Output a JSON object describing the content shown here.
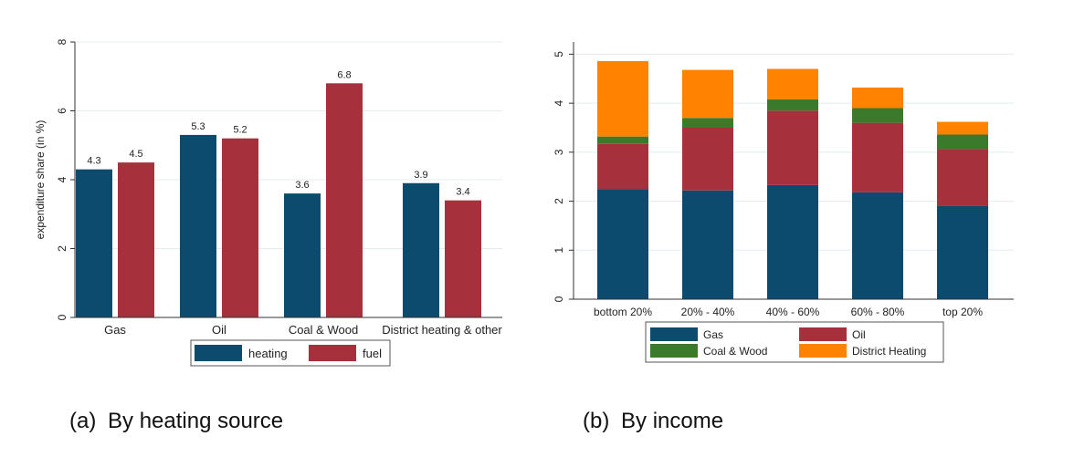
{
  "chart_data": [
    {
      "type": "bar",
      "title": "",
      "ylabel": "expenditure share (in %)",
      "xlabel": "",
      "categories": [
        "Gas",
        "Oil",
        "Coal & Wood",
        "District heating & other"
      ],
      "series": [
        {
          "name": "heating",
          "values": [
            4.3,
            5.3,
            3.6,
            3.9
          ],
          "labels": [
            "4.3",
            "5.3",
            "3.6",
            "3.9"
          ],
          "color": "#0c4a6e"
        },
        {
          "name": "fuel",
          "values": [
            4.5,
            5.2,
            6.8,
            3.4
          ],
          "labels": [
            "4.5",
            "5.2",
            "6.8",
            "3.4"
          ],
          "color": "#a6313d"
        }
      ],
      "yticks": [
        "0",
        "2",
        "4",
        "6",
        "8"
      ],
      "ylim": [
        0,
        8
      ],
      "grid": true,
      "legend_position": "bottom"
    },
    {
      "type": "stacked-bar",
      "title": "",
      "ylabel": "",
      "xlabel": "",
      "categories": [
        "bottom 20%",
        "20% - 40%",
        "40% - 60%",
        "60% - 80%",
        "top 20%"
      ],
      "series": [
        {
          "name": "Gas",
          "values": [
            2.25,
            2.22,
            2.33,
            2.18,
            1.9
          ],
          "color": "#0c4a6e"
        },
        {
          "name": "Oil",
          "values": [
            0.92,
            1.28,
            1.52,
            1.42,
            1.17
          ],
          "color": "#a6313d"
        },
        {
          "name": "Coal & Wood",
          "values": [
            0.15,
            0.2,
            0.23,
            0.3,
            0.29
          ],
          "color": "#3b7a2a"
        },
        {
          "name": "District Heating",
          "values": [
            1.54,
            0.98,
            0.62,
            0.42,
            0.26
          ],
          "color": "#ff8300"
        }
      ],
      "yticks": [
        "0",
        "1",
        "2",
        "3",
        "4",
        "5"
      ],
      "ylim": [
        0,
        5
      ],
      "grid": true,
      "legend_position": "bottom"
    }
  ],
  "captions": {
    "a": {
      "tag": "(a)",
      "text": "By heating source"
    },
    "b": {
      "tag": "(b)",
      "text": "By income"
    }
  }
}
